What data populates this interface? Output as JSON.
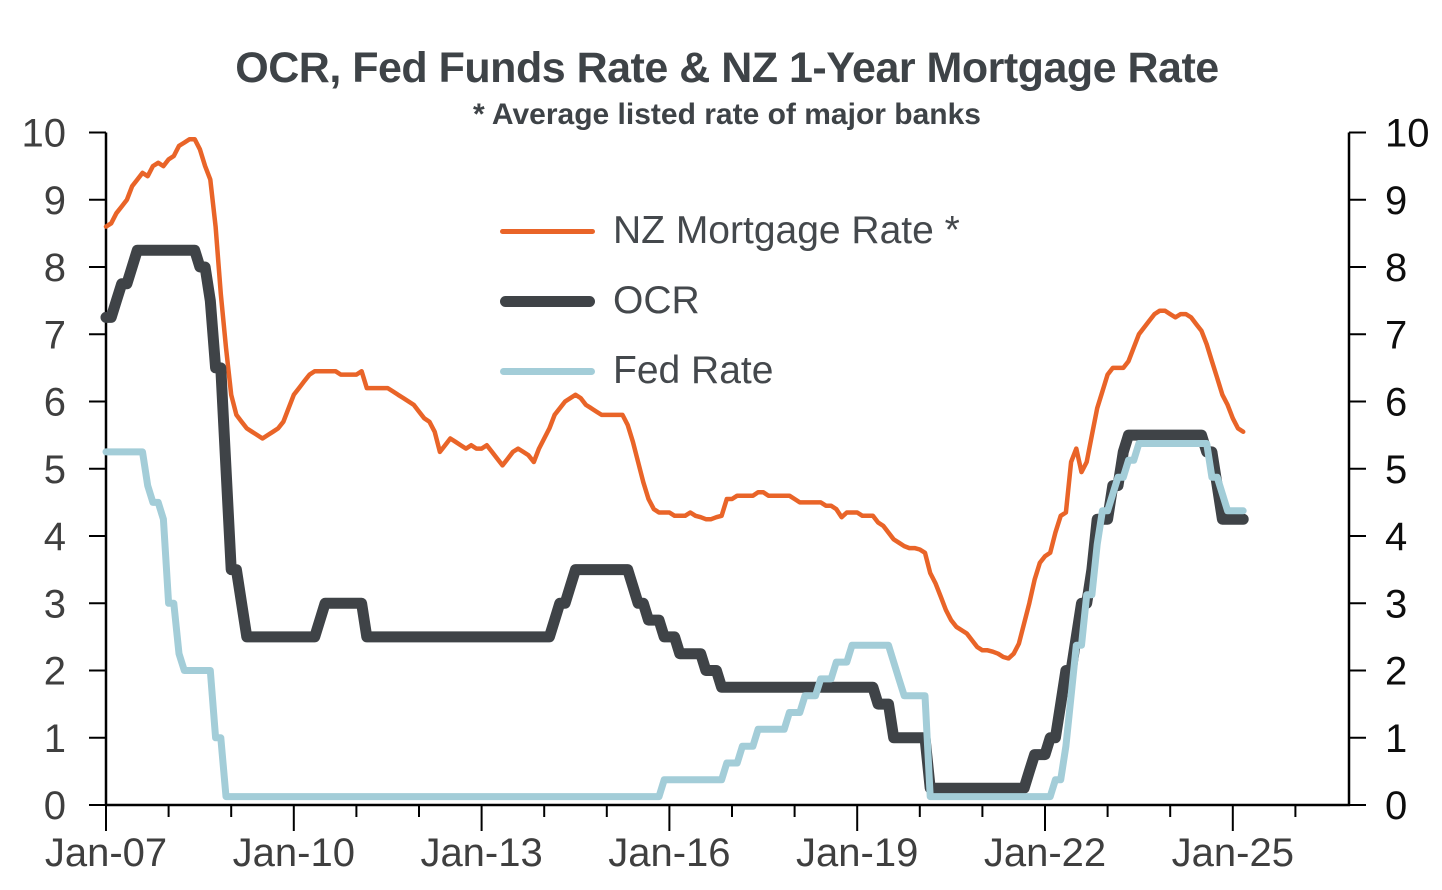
{
  "chart_data": {
    "type": "line",
    "title": "OCR, Fed Funds Rate & NZ 1-Year Mortgage Rate",
    "subtitle": "* Average listed rate of major banks",
    "frequency": "monthly",
    "x": {
      "start": "2007-01",
      "end": "2025-03",
      "tick_labels": [
        "Jan-07",
        "Jan-10",
        "Jan-13",
        "Jan-16",
        "Jan-19",
        "Jan-22",
        "Jan-25"
      ],
      "major_tick_every_years": 3,
      "minor_tick_every_years": 1,
      "first_year": 2007,
      "last_minor_tick_year": 2026
    },
    "y": {
      "min": 0,
      "max": 10,
      "step": 1,
      "tick_labels": [
        "0",
        "1",
        "2",
        "3",
        "4",
        "5",
        "6",
        "7",
        "8",
        "9",
        "10"
      ],
      "sides": "both",
      "grid": false
    },
    "legend": {
      "position": "inside-top-center",
      "entries": [
        "NZ Mortgage Rate *",
        "OCR",
        "Fed Rate"
      ]
    },
    "axis_colors": {
      "axis_line": "#000000",
      "labels_left": "#3F3F3F",
      "labels_right": "#0D0D0D"
    },
    "series": [
      {
        "name": "NZ Mortgage Rate *",
        "color": "#E96428",
        "stroke_width": 4.5,
        "values": [
          8.6,
          8.65,
          8.8,
          8.9,
          9.0,
          9.2,
          9.3,
          9.4,
          9.35,
          9.5,
          9.55,
          9.5,
          9.6,
          9.65,
          9.8,
          9.85,
          9.9,
          9.9,
          9.75,
          9.5,
          9.3,
          8.6,
          7.6,
          6.8,
          6.1,
          5.8,
          5.7,
          5.6,
          5.55,
          5.5,
          5.45,
          5.5,
          5.55,
          5.6,
          5.7,
          5.9,
          6.1,
          6.2,
          6.3,
          6.4,
          6.45,
          6.45,
          6.45,
          6.45,
          6.45,
          6.4,
          6.4,
          6.4,
          6.4,
          6.45,
          6.2,
          6.2,
          6.2,
          6.2,
          6.2,
          6.15,
          6.1,
          6.05,
          6.0,
          5.95,
          5.85,
          5.75,
          5.7,
          5.55,
          5.25,
          5.35,
          5.45,
          5.4,
          5.35,
          5.3,
          5.35,
          5.3,
          5.3,
          5.35,
          5.25,
          5.15,
          5.05,
          5.15,
          5.25,
          5.3,
          5.25,
          5.2,
          5.1,
          5.3,
          5.45,
          5.6,
          5.8,
          5.9,
          6.0,
          6.05,
          6.1,
          6.05,
          5.95,
          5.9,
          5.85,
          5.8,
          5.8,
          5.8,
          5.8,
          5.8,
          5.65,
          5.4,
          5.1,
          4.8,
          4.55,
          4.4,
          4.35,
          4.35,
          4.35,
          4.3,
          4.3,
          4.3,
          4.35,
          4.3,
          4.28,
          4.25,
          4.25,
          4.28,
          4.3,
          4.55,
          4.55,
          4.6,
          4.6,
          4.6,
          4.6,
          4.65,
          4.65,
          4.6,
          4.6,
          4.6,
          4.6,
          4.6,
          4.55,
          4.5,
          4.5,
          4.5,
          4.5,
          4.5,
          4.45,
          4.45,
          4.4,
          4.28,
          4.35,
          4.35,
          4.35,
          4.3,
          4.3,
          4.3,
          4.2,
          4.15,
          4.05,
          3.95,
          3.9,
          3.85,
          3.82,
          3.82,
          3.8,
          3.75,
          3.45,
          3.3,
          3.1,
          2.9,
          2.75,
          2.65,
          2.6,
          2.55,
          2.45,
          2.35,
          2.3,
          2.3,
          2.28,
          2.25,
          2.2,
          2.18,
          2.25,
          2.4,
          2.7,
          3.0,
          3.35,
          3.6,
          3.7,
          3.75,
          4.05,
          4.3,
          4.35,
          5.1,
          5.3,
          4.95,
          5.1,
          5.5,
          5.9,
          6.15,
          6.4,
          6.5,
          6.5,
          6.5,
          6.6,
          6.8,
          7.0,
          7.1,
          7.2,
          7.3,
          7.35,
          7.35,
          7.3,
          7.25,
          7.3,
          7.3,
          7.25,
          7.15,
          7.05,
          6.85,
          6.6,
          6.35,
          6.1,
          5.95,
          5.75,
          5.6,
          5.55
        ]
      },
      {
        "name": "OCR",
        "color": "#3F4347",
        "stroke_width": 11,
        "values": [
          7.25,
          7.25,
          7.5,
          7.75,
          7.75,
          8.0,
          8.25,
          8.25,
          8.25,
          8.25,
          8.25,
          8.25,
          8.25,
          8.25,
          8.25,
          8.25,
          8.25,
          8.25,
          8.0,
          8.0,
          7.5,
          6.5,
          6.5,
          5.0,
          3.5,
          3.5,
          3.0,
          2.5,
          2.5,
          2.5,
          2.5,
          2.5,
          2.5,
          2.5,
          2.5,
          2.5,
          2.5,
          2.5,
          2.5,
          2.5,
          2.5,
          2.75,
          3.0,
          3.0,
          3.0,
          3.0,
          3.0,
          3.0,
          3.0,
          3.0,
          2.5,
          2.5,
          2.5,
          2.5,
          2.5,
          2.5,
          2.5,
          2.5,
          2.5,
          2.5,
          2.5,
          2.5,
          2.5,
          2.5,
          2.5,
          2.5,
          2.5,
          2.5,
          2.5,
          2.5,
          2.5,
          2.5,
          2.5,
          2.5,
          2.5,
          2.5,
          2.5,
          2.5,
          2.5,
          2.5,
          2.5,
          2.5,
          2.5,
          2.5,
          2.5,
          2.5,
          2.75,
          3.0,
          3.0,
          3.25,
          3.5,
          3.5,
          3.5,
          3.5,
          3.5,
          3.5,
          3.5,
          3.5,
          3.5,
          3.5,
          3.5,
          3.25,
          3.0,
          3.0,
          2.75,
          2.75,
          2.75,
          2.5,
          2.5,
          2.5,
          2.25,
          2.25,
          2.25,
          2.25,
          2.25,
          2.0,
          2.0,
          2.0,
          1.75,
          1.75,
          1.75,
          1.75,
          1.75,
          1.75,
          1.75,
          1.75,
          1.75,
          1.75,
          1.75,
          1.75,
          1.75,
          1.75,
          1.75,
          1.75,
          1.75,
          1.75,
          1.75,
          1.75,
          1.75,
          1.75,
          1.75,
          1.75,
          1.75,
          1.75,
          1.75,
          1.75,
          1.75,
          1.75,
          1.5,
          1.5,
          1.5,
          1.0,
          1.0,
          1.0,
          1.0,
          1.0,
          1.0,
          1.0,
          0.25,
          0.25,
          0.25,
          0.25,
          0.25,
          0.25,
          0.25,
          0.25,
          0.25,
          0.25,
          0.25,
          0.25,
          0.25,
          0.25,
          0.25,
          0.25,
          0.25,
          0.25,
          0.25,
          0.5,
          0.75,
          0.75,
          0.75,
          1.0,
          1.0,
          1.5,
          2.0,
          2.0,
          2.5,
          3.0,
          3.0,
          3.5,
          4.25,
          4.25,
          4.25,
          4.75,
          4.75,
          5.25,
          5.5,
          5.5,
          5.5,
          5.5,
          5.5,
          5.5,
          5.5,
          5.5,
          5.5,
          5.5,
          5.5,
          5.5,
          5.5,
          5.5,
          5.5,
          5.25,
          5.25,
          4.75,
          4.25,
          4.25,
          4.25,
          4.25,
          4.25
        ]
      },
      {
        "name": "Fed Rate",
        "color": "#A3CDD8",
        "stroke_width": 7,
        "values": [
          5.25,
          5.25,
          5.25,
          5.25,
          5.25,
          5.25,
          5.25,
          5.25,
          4.75,
          4.5,
          4.5,
          4.25,
          3.0,
          3.0,
          2.25,
          2.0,
          2.0,
          2.0,
          2.0,
          2.0,
          2.0,
          1.0,
          1.0,
          0.125,
          0.125,
          0.125,
          0.125,
          0.125,
          0.125,
          0.125,
          0.125,
          0.125,
          0.125,
          0.125,
          0.125,
          0.125,
          0.125,
          0.125,
          0.125,
          0.125,
          0.125,
          0.125,
          0.125,
          0.125,
          0.125,
          0.125,
          0.125,
          0.125,
          0.125,
          0.125,
          0.125,
          0.125,
          0.125,
          0.125,
          0.125,
          0.125,
          0.125,
          0.125,
          0.125,
          0.125,
          0.125,
          0.125,
          0.125,
          0.125,
          0.125,
          0.125,
          0.125,
          0.125,
          0.125,
          0.125,
          0.125,
          0.125,
          0.125,
          0.125,
          0.125,
          0.125,
          0.125,
          0.125,
          0.125,
          0.125,
          0.125,
          0.125,
          0.125,
          0.125,
          0.125,
          0.125,
          0.125,
          0.125,
          0.125,
          0.125,
          0.125,
          0.125,
          0.125,
          0.125,
          0.125,
          0.125,
          0.125,
          0.125,
          0.125,
          0.125,
          0.125,
          0.125,
          0.125,
          0.125,
          0.125,
          0.125,
          0.125,
          0.375,
          0.375,
          0.375,
          0.375,
          0.375,
          0.375,
          0.375,
          0.375,
          0.375,
          0.375,
          0.375,
          0.375,
          0.625,
          0.625,
          0.625,
          0.875,
          0.875,
          0.875,
          1.125,
          1.125,
          1.125,
          1.125,
          1.125,
          1.125,
          1.375,
          1.375,
          1.375,
          1.625,
          1.625,
          1.625,
          1.875,
          1.875,
          1.875,
          2.125,
          2.125,
          2.125,
          2.375,
          2.375,
          2.375,
          2.375,
          2.375,
          2.375,
          2.375,
          2.375,
          2.125,
          1.875,
          1.625,
          1.625,
          1.625,
          1.625,
          1.625,
          0.125,
          0.125,
          0.125,
          0.125,
          0.125,
          0.125,
          0.125,
          0.125,
          0.125,
          0.125,
          0.125,
          0.125,
          0.125,
          0.125,
          0.125,
          0.125,
          0.125,
          0.125,
          0.125,
          0.125,
          0.125,
          0.125,
          0.125,
          0.125,
          0.375,
          0.375,
          0.875,
          1.625,
          2.375,
          2.375,
          3.125,
          3.125,
          3.875,
          4.375,
          4.375,
          4.625,
          4.875,
          4.875,
          5.125,
          5.125,
          5.375,
          5.375,
          5.375,
          5.375,
          5.375,
          5.375,
          5.375,
          5.375,
          5.375,
          5.375,
          5.375,
          5.375,
          5.375,
          5.375,
          4.875,
          4.875,
          4.625,
          4.375,
          4.375,
          4.375,
          4.375
        ]
      }
    ]
  }
}
